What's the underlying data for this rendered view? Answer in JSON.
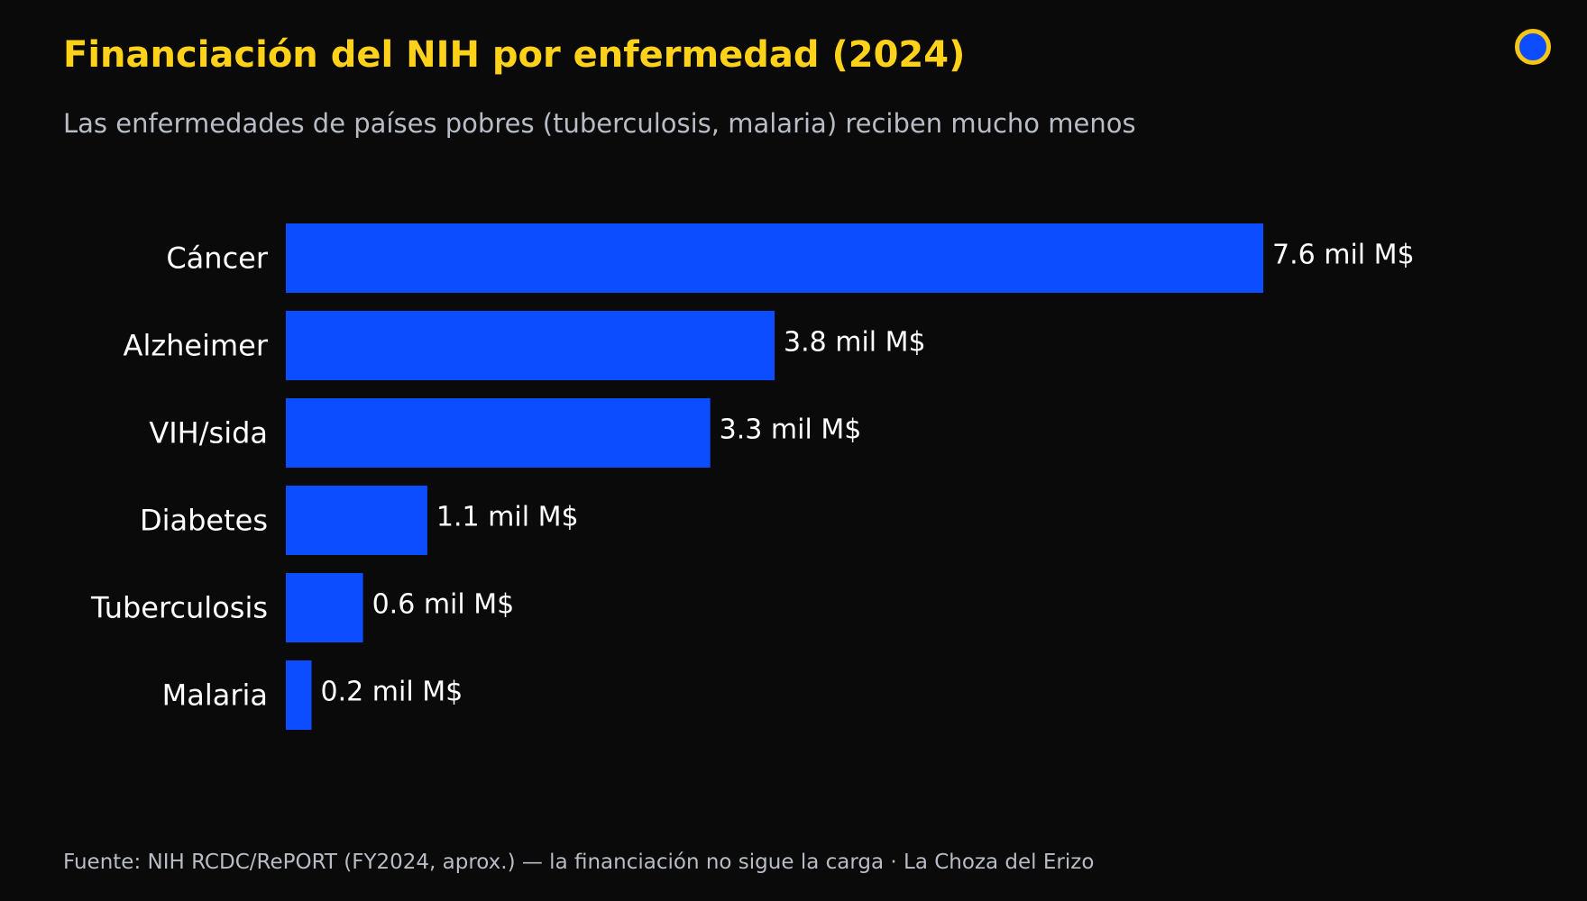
{
  "header": {
    "title": "Financiación del NIH por enfermedad (2024)",
    "subtitle": "Las enfermedades de países pobres (tuberculosis, malaria) reciben mucho menos"
  },
  "logo": {
    "icon": "blue-circle-icon",
    "fill_color": "#0b4dff",
    "ring_color": "#f5c518"
  },
  "chart_data": {
    "type": "bar",
    "orientation": "horizontal",
    "categories": [
      "Cáncer",
      "Alzheimer",
      "VIH/sida",
      "Diabetes",
      "Tuberculosis",
      "Malaria"
    ],
    "values": [
      7.6,
      3.8,
      3.3,
      1.1,
      0.6,
      0.2
    ],
    "value_labels": [
      "7.6 mil M$",
      "3.8 mil M$",
      "3.3 mil M$",
      "1.1 mil M$",
      "0.6 mil M$",
      "0.2 mil M$"
    ],
    "xlim": [
      0,
      7.6
    ],
    "grid": false,
    "legend": "none",
    "bar_color": "#0b4dff"
  },
  "footer": {
    "source": "Fuente: NIH RCDC/RePORT (FY2024, aprox.) — la financiación no sigue la carga  ·  La Choza del Erizo"
  }
}
